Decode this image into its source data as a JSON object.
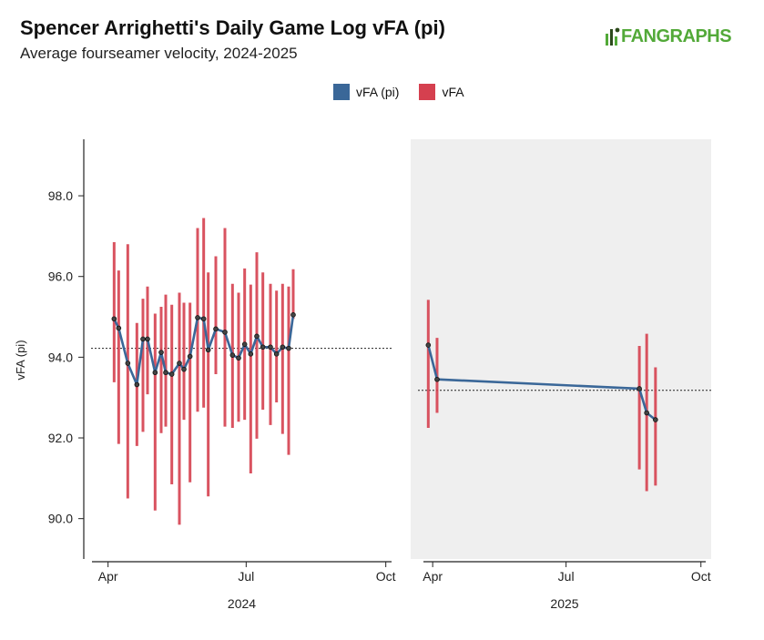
{
  "header": {
    "title": "Spencer Arrighetti's Daily Game Log vFA (pi)",
    "subtitle": "Average fourseamer velocity, 2024-2025",
    "logo_text": "FANGRAPHS"
  },
  "colors": {
    "line": "#3a6798",
    "bar": "#d5404f",
    "panel_2025_bg": "#efefef",
    "logo_green": "#52a938",
    "logo_dark": "#2d4a1c"
  },
  "chart_data": {
    "type": "line",
    "title": "Spencer Arrighetti's Daily Game Log vFA (pi)",
    "subtitle": "Average fourseamer velocity, 2024-2025",
    "ylabel": "vFA (pi)",
    "ylim": [
      89.0,
      99.4
    ],
    "yticks": [
      "90.0",
      "92.0",
      "94.0",
      "96.0",
      "98.0"
    ],
    "legend": {
      "placement": "top-center",
      "entries": [
        {
          "name": "vFA (pi)",
          "color": "#3a6798"
        },
        {
          "name": "vFA",
          "color": "#d5404f"
        }
      ]
    },
    "panels": [
      {
        "year": "2024",
        "xlabel": "2024",
        "xlim": [
          "2024-03-16",
          "2024-10-06"
        ],
        "ticks": [
          {
            "label": "Apr",
            "date": "2024-04-01"
          },
          {
            "label": "Jul",
            "date": "2024-07-01"
          },
          {
            "label": "Oct",
            "date": "2024-10-01"
          }
        ],
        "average": 94.22,
        "shaded": false,
        "games": [
          {
            "date": "2024-04-05",
            "vfa_pi": 94.95,
            "min": 93.38,
            "max": 96.85
          },
          {
            "date": "2024-04-08",
            "vfa_pi": 94.72,
            "min": 91.85,
            "max": 96.15
          },
          {
            "date": "2024-04-14",
            "vfa_pi": 93.85,
            "min": 90.5,
            "max": 96.8
          },
          {
            "date": "2024-04-20",
            "vfa_pi": 93.32,
            "min": 91.8,
            "max": 94.85
          },
          {
            "date": "2024-04-24",
            "vfa_pi": 94.45,
            "min": 92.15,
            "max": 95.45
          },
          {
            "date": "2024-04-27",
            "vfa_pi": 94.45,
            "min": 93.08,
            "max": 95.75
          },
          {
            "date": "2024-05-02",
            "vfa_pi": 93.62,
            "min": 90.2,
            "max": 95.08
          },
          {
            "date": "2024-05-06",
            "vfa_pi": 94.12,
            "min": 92.12,
            "max": 95.25
          },
          {
            "date": "2024-05-09",
            "vfa_pi": 93.62,
            "min": 92.28,
            "max": 95.55
          },
          {
            "date": "2024-05-13",
            "vfa_pi": 93.58,
            "min": 90.85,
            "max": 95.3
          },
          {
            "date": "2024-05-18",
            "vfa_pi": 93.85,
            "min": 89.85,
            "max": 95.6
          },
          {
            "date": "2024-05-21",
            "vfa_pi": 93.7,
            "min": 92.45,
            "max": 95.35
          },
          {
            "date": "2024-05-25",
            "vfa_pi": 94.02,
            "min": 90.9,
            "max": 95.35
          },
          {
            "date": "2024-05-30",
            "vfa_pi": 94.98,
            "min": 92.65,
            "max": 97.2
          },
          {
            "date": "2024-06-03",
            "vfa_pi": 94.95,
            "min": 92.75,
            "max": 97.45
          },
          {
            "date": "2024-06-06",
            "vfa_pi": 94.18,
            "min": 90.55,
            "max": 96.1
          },
          {
            "date": "2024-06-11",
            "vfa_pi": 94.7,
            "min": 93.58,
            "max": 96.5
          },
          {
            "date": "2024-06-17",
            "vfa_pi": 94.62,
            "min": 92.28,
            "max": 97.2
          },
          {
            "date": "2024-06-22",
            "vfa_pi": 94.05,
            "min": 92.25,
            "max": 95.82
          },
          {
            "date": "2024-06-26",
            "vfa_pi": 93.98,
            "min": 92.4,
            "max": 95.6
          },
          {
            "date": "2024-06-30",
            "vfa_pi": 94.32,
            "min": 92.45,
            "max": 96.2
          },
          {
            "date": "2024-07-04",
            "vfa_pi": 94.08,
            "min": 91.12,
            "max": 95.8
          },
          {
            "date": "2024-07-08",
            "vfa_pi": 94.52,
            "min": 91.98,
            "max": 96.6
          },
          {
            "date": "2024-07-12",
            "vfa_pi": 94.25,
            "min": 92.7,
            "max": 96.1
          },
          {
            "date": "2024-07-17",
            "vfa_pi": 94.25,
            "min": 92.32,
            "max": 95.82
          },
          {
            "date": "2024-07-21",
            "vfa_pi": 94.08,
            "min": 92.88,
            "max": 95.65
          },
          {
            "date": "2024-07-25",
            "vfa_pi": 94.25,
            "min": 92.1,
            "max": 95.82
          },
          {
            "date": "2024-07-29",
            "vfa_pi": 94.22,
            "min": 91.58,
            "max": 95.75
          },
          {
            "date": "2024-08-01",
            "vfa_pi": 95.05,
            "min": 94.95,
            "max": 96.18
          }
        ]
      },
      {
        "year": "2025",
        "xlabel": "2025",
        "xlim": [
          "2025-03-17",
          "2025-10-08"
        ],
        "ticks": [
          {
            "label": "Apr",
            "date": "2025-04-01"
          },
          {
            "label": "Jul",
            "date": "2025-07-01"
          },
          {
            "label": "Oct",
            "date": "2025-10-01"
          }
        ],
        "average": 93.18,
        "shaded": true,
        "games": [
          {
            "date": "2025-03-29",
            "vfa_pi": 94.3,
            "min": 92.25,
            "max": 95.42
          },
          {
            "date": "2025-04-04",
            "vfa_pi": 93.45,
            "min": 92.62,
            "max": 94.48
          },
          {
            "date": "2025-08-20",
            "vfa_pi": 93.22,
            "min": 91.22,
            "max": 94.28
          },
          {
            "date": "2025-08-25",
            "vfa_pi": 92.62,
            "min": 90.68,
            "max": 94.58
          },
          {
            "date": "2025-08-31",
            "vfa_pi": 92.45,
            "min": 90.82,
            "max": 93.75
          }
        ]
      }
    ]
  }
}
